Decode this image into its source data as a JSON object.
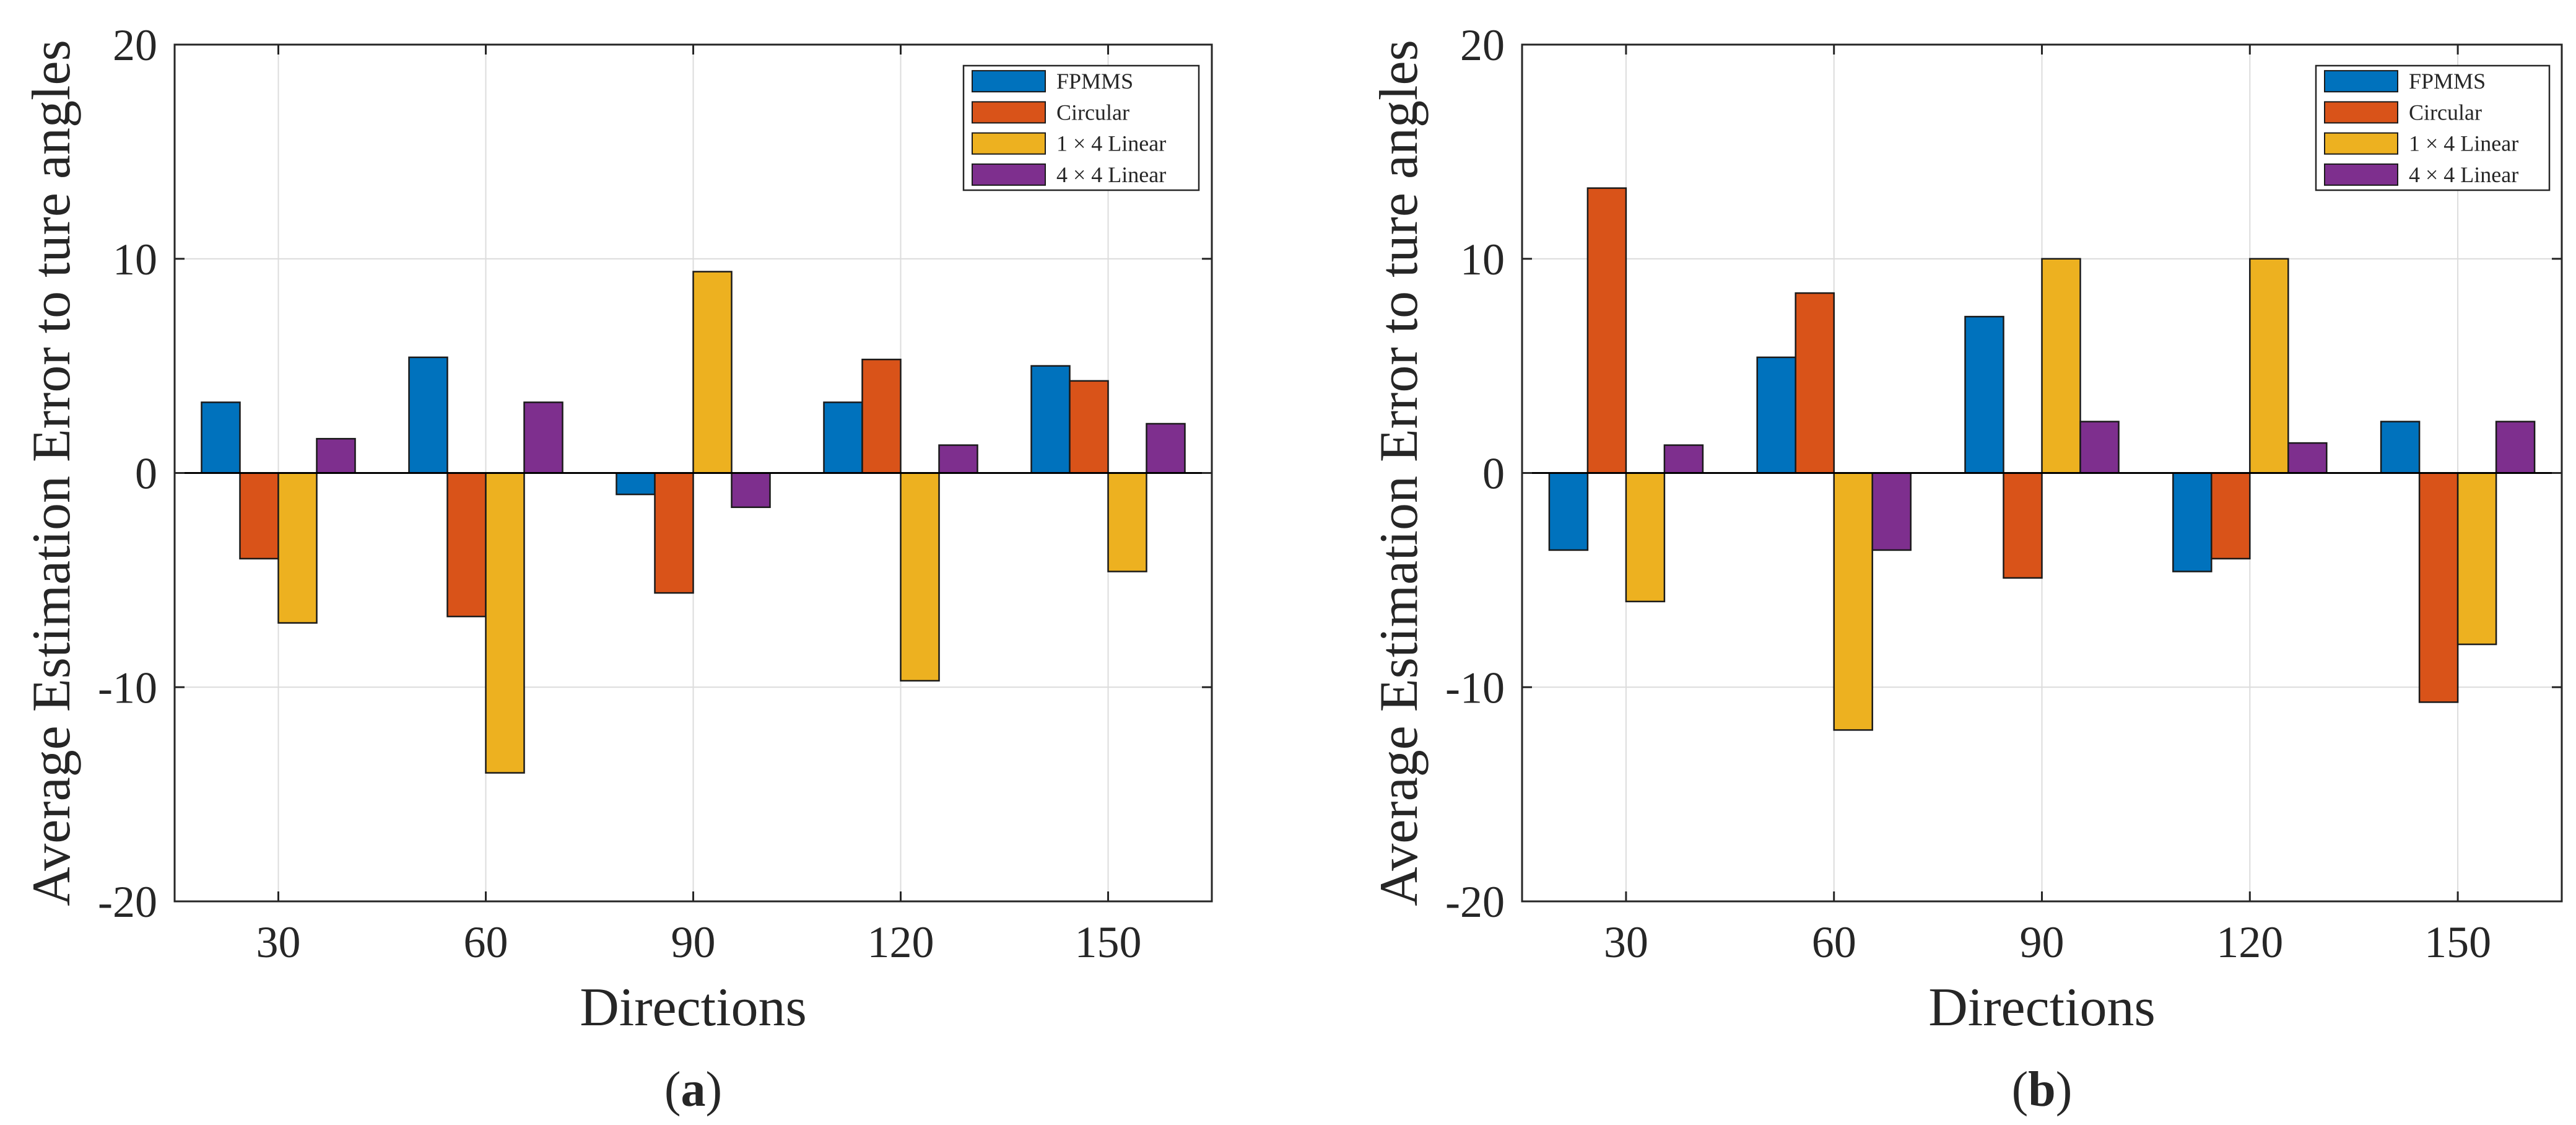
{
  "chart_data": [
    {
      "type": "bar",
      "panel_label": "a",
      "title": "",
      "xlabel": "Directions",
      "ylabel": "Average Estimation Error to ture angles",
      "categories": [
        "30",
        "60",
        "90",
        "120",
        "150"
      ],
      "ylim": [
        -20,
        20
      ],
      "yticks": [
        -20,
        -10,
        0,
        10,
        20
      ],
      "grid": true,
      "legend_position": "top-right",
      "series": [
        {
          "name": "FPMMS",
          "color": "#0072BD",
          "values": [
            3.3,
            5.4,
            -1.0,
            3.3,
            5.0
          ]
        },
        {
          "name": "Circular",
          "color": "#D95319",
          "values": [
            -4.0,
            -6.7,
            -5.6,
            5.3,
            4.3
          ]
        },
        {
          "name": "1 × 4 Linear",
          "color": "#EDB120",
          "values": [
            -7.0,
            -14.0,
            9.4,
            -9.7,
            -4.6
          ]
        },
        {
          "name": "4 × 4 Linear",
          "color": "#7E2F8E",
          "values": [
            1.6,
            3.3,
            -1.6,
            1.3,
            2.3
          ]
        }
      ]
    },
    {
      "type": "bar",
      "panel_label": "b",
      "title": "",
      "xlabel": "Directions",
      "ylabel": "Average Estimation Error to ture angles",
      "categories": [
        "30",
        "60",
        "90",
        "120",
        "150"
      ],
      "ylim": [
        -20,
        20
      ],
      "yticks": [
        -20,
        -10,
        0,
        10,
        20
      ],
      "grid": true,
      "legend_position": "top-right",
      "series": [
        {
          "name": "FPMMS",
          "color": "#0072BD",
          "values": [
            -3.6,
            5.4,
            7.3,
            -4.6,
            2.4
          ]
        },
        {
          "name": "Circular",
          "color": "#D95319",
          "values": [
            13.3,
            8.4,
            -4.9,
            -4.0,
            -10.7
          ]
        },
        {
          "name": "1 × 4 Linear",
          "color": "#EDB120",
          "values": [
            -6.0,
            -12.0,
            10.0,
            10.0,
            -8.0
          ]
        },
        {
          "name": "4 × 4 Linear",
          "color": "#7E2F8E",
          "values": [
            1.3,
            -3.6,
            2.4,
            1.4,
            2.4
          ]
        }
      ]
    }
  ]
}
